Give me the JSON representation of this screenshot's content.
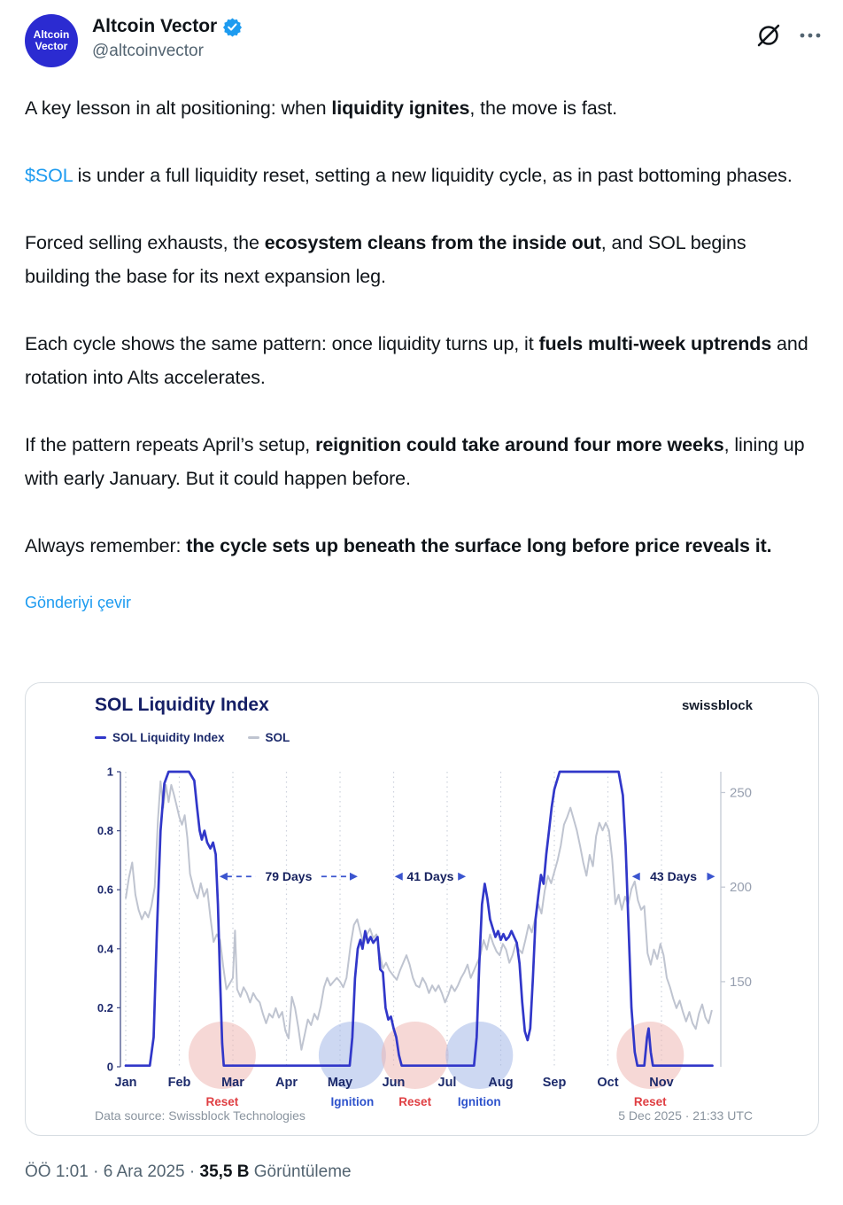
{
  "header": {
    "avatar": {
      "line1": "Altcoin",
      "line2": "Vector",
      "bg": "#2b2bd1"
    },
    "display_name": "Altcoin Vector",
    "handle": "@altcoinvector"
  },
  "tweet": {
    "paragraphs": [
      [
        {
          "t": "A key lesson in alt positioning: when "
        },
        {
          "t": "liquidity ignites",
          "b": true
        },
        {
          "t": ", the move is fast."
        }
      ],
      [
        {
          "t": "$SOL",
          "link": true
        },
        {
          "t": " is under a full liquidity reset, setting a new liquidity cycle, as in past bottoming phases."
        }
      ],
      [
        {
          "t": "Forced selling exhausts, the "
        },
        {
          "t": "ecosystem cleans from the inside out",
          "b": true
        },
        {
          "t": ", and SOL begins building the base for its next expansion leg."
        }
      ],
      [
        {
          "t": "Each cycle shows the same pattern: once liquidity turns up, it "
        },
        {
          "t": "fuels multi-week uptrends",
          "b": true
        },
        {
          "t": " and rotation into Alts accelerates."
        }
      ],
      [
        {
          "t": "If the pattern repeats April’s setup, "
        },
        {
          "t": "reignition could take around four more weeks",
          "b": true
        },
        {
          "t": ", lining up with early January. But it could happen before."
        }
      ],
      [
        {
          "t": "Always remember: "
        },
        {
          "t": "the cycle sets up beneath the surface long before price reveals it.",
          "b": true
        }
      ]
    ],
    "translate_label": "Gönderiyi çevir"
  },
  "footer_meta": {
    "prefix": "ÖÖ 1:01 · 6 Ara 2025 · ",
    "views_count": "35,5 B",
    "views_label": " Görüntüleme"
  },
  "chart_data": {
    "type": "line",
    "title": "SOL Liquidity Index",
    "watermark": "swissblock",
    "legend": [
      {
        "name": "SOL Liquidity Index",
        "color": "#3137c9"
      },
      {
        "name": "SOL",
        "color": "#bfc4d0"
      }
    ],
    "x_months": [
      "Jan",
      "Feb",
      "Mar",
      "Apr",
      "May",
      "Jun",
      "Jul",
      "Aug",
      "Sep",
      "Oct",
      "Nov"
    ],
    "left_axis": {
      "ticks": [
        "1",
        "0.8",
        "0.6",
        "0.4",
        "0.2",
        "0"
      ],
      "range": [
        0,
        1
      ]
    },
    "right_axis": {
      "ticks": [
        250,
        200,
        150
      ],
      "baseline_value": 105,
      "top_value": 261
    },
    "grid": "vertical-dotted-monthly",
    "legend_position": "top-left",
    "series": [
      {
        "name": "SOL Liquidity Index",
        "axis": "left",
        "x": [
          0,
          0.45,
          0.52,
          0.58,
          0.65,
          0.72,
          0.8,
          1.18,
          1.28,
          1.33,
          1.38,
          1.42,
          1.47,
          1.52,
          1.58,
          1.63,
          1.68,
          1.72,
          1.76,
          1.8,
          1.83,
          4.18,
          4.23,
          4.28,
          4.33,
          4.38,
          4.42,
          4.47,
          4.52,
          4.57,
          4.62,
          4.7,
          4.75,
          4.8,
          4.85,
          4.9,
          4.95,
          5,
          5.05,
          5.1,
          5.15,
          6.5,
          6.55,
          6.6,
          6.65,
          6.7,
          6.75,
          6.8,
          6.85,
          6.9,
          6.95,
          7,
          7.05,
          7.1,
          7.15,
          7.2,
          7.25,
          7.3,
          7.35,
          7.4,
          7.45,
          7.5,
          7.55,
          7.6,
          7.65,
          7.7,
          7.75,
          7.8,
          7.85,
          7.9,
          7.95,
          8,
          8.1,
          9.2,
          9.28,
          9.33,
          9.38,
          9.44,
          9.5,
          9.55,
          9.68,
          9.73,
          9.76,
          9.8,
          9.84,
          10.95
        ],
        "y": [
          0.004,
          0.004,
          0.1,
          0.45,
          0.8,
          0.96,
          1,
          1,
          0.97,
          0.88,
          0.8,
          0.77,
          0.8,
          0.76,
          0.74,
          0.76,
          0.72,
          0.55,
          0.3,
          0.08,
          0.004,
          0.004,
          0.1,
          0.3,
          0.4,
          0.43,
          0.4,
          0.46,
          0.42,
          0.44,
          0.42,
          0.44,
          0.33,
          0.32,
          0.2,
          0.16,
          0.17,
          0.13,
          0.1,
          0.04,
          0.004,
          0.004,
          0.1,
          0.35,
          0.55,
          0.62,
          0.57,
          0.5,
          0.47,
          0.44,
          0.46,
          0.43,
          0.45,
          0.43,
          0.44,
          0.46,
          0.44,
          0.42,
          0.35,
          0.22,
          0.12,
          0.09,
          0.13,
          0.3,
          0.5,
          0.58,
          0.65,
          0.62,
          0.72,
          0.8,
          0.88,
          0.94,
          1,
          1,
          0.92,
          0.75,
          0.5,
          0.2,
          0.05,
          0.004,
          0.004,
          0.1,
          0.13,
          0.05,
          0.004,
          0.004
        ]
      },
      {
        "name": "SOL",
        "axis": "right",
        "x": [
          0,
          0.06,
          0.12,
          0.18,
          0.24,
          0.3,
          0.36,
          0.42,
          0.48,
          0.54,
          0.6,
          0.65,
          0.7,
          0.75,
          0.8,
          0.85,
          0.9,
          0.95,
          1,
          1.05,
          1.1,
          1.15,
          1.2,
          1.28,
          1.34,
          1.4,
          1.46,
          1.52,
          1.58,
          1.64,
          1.7,
          1.76,
          1.82,
          1.88,
          1.94,
          2,
          2.04,
          2.08,
          2.14,
          2.2,
          2.26,
          2.32,
          2.38,
          2.44,
          2.5,
          2.56,
          2.62,
          2.68,
          2.74,
          2.8,
          2.86,
          2.92,
          2.98,
          3.04,
          3.1,
          3.16,
          3.22,
          3.28,
          3.34,
          3.4,
          3.46,
          3.52,
          3.58,
          3.64,
          3.7,
          3.76,
          3.82,
          3.88,
          3.94,
          4,
          4.06,
          4.12,
          4.2,
          4.26,
          4.32,
          4.38,
          4.44,
          4.5,
          4.56,
          4.62,
          4.68,
          4.74,
          4.8,
          4.86,
          4.92,
          5,
          5.06,
          5.12,
          5.18,
          5.24,
          5.3,
          5.36,
          5.42,
          5.48,
          5.54,
          5.6,
          5.66,
          5.72,
          5.78,
          5.84,
          5.9,
          5.96,
          6.02,
          6.08,
          6.14,
          6.2,
          6.26,
          6.32,
          6.38,
          6.44,
          6.5,
          6.56,
          6.62,
          6.68,
          6.74,
          6.8,
          6.86,
          6.92,
          6.98,
          7.04,
          7.1,
          7.16,
          7.22,
          7.28,
          7.34,
          7.4,
          7.46,
          7.52,
          7.58,
          7.64,
          7.7,
          7.76,
          7.82,
          7.88,
          7.94,
          8,
          8.06,
          8.12,
          8.18,
          8.24,
          8.3,
          8.36,
          8.42,
          8.48,
          8.54,
          8.6,
          8.66,
          8.72,
          8.78,
          8.84,
          8.9,
          8.96,
          9.02,
          9.08,
          9.14,
          9.2,
          9.26,
          9.32,
          9.38,
          9.44,
          9.5,
          9.56,
          9.62,
          9.68,
          9.74,
          9.8,
          9.86,
          9.92,
          9.98,
          10.04,
          10.1,
          10.16,
          10.22,
          10.28,
          10.34,
          10.4,
          10.46,
          10.52,
          10.58,
          10.64,
          10.7,
          10.76,
          10.82,
          10.88,
          10.94
        ],
        "y": [
          194,
          205,
          213,
          196,
          188,
          183,
          187,
          184,
          190,
          200,
          235,
          256,
          242,
          254,
          245,
          254,
          249,
          243,
          237,
          233,
          238,
          226,
          207,
          198,
          194,
          202,
          195,
          199,
          184,
          171,
          175,
          172,
          158,
          146,
          149,
          152,
          177,
          146,
          142,
          147,
          144,
          139,
          144,
          141,
          139,
          133,
          128,
          133,
          131,
          136,
          131,
          134,
          124,
          120,
          142,
          136,
          126,
          114,
          122,
          130,
          127,
          133,
          130,
          137,
          147,
          152,
          148,
          150,
          152,
          150,
          147,
          152,
          170,
          180,
          183,
          176,
          170,
          175,
          178,
          173,
          175,
          165,
          157,
          160,
          156,
          153,
          151,
          156,
          160,
          164,
          159,
          152,
          148,
          147,
          152,
          149,
          144,
          148,
          145,
          148,
          144,
          139,
          143,
          148,
          145,
          148,
          152,
          155,
          159,
          152,
          156,
          160,
          164,
          172,
          167,
          175,
          170,
          166,
          164,
          170,
          167,
          160,
          164,
          170,
          167,
          165,
          172,
          180,
          176,
          183,
          191,
          186,
          198,
          206,
          202,
          208,
          214,
          222,
          233,
          237,
          242,
          236,
          230,
          222,
          213,
          206,
          217,
          211,
          227,
          234,
          230,
          234,
          230,
          215,
          191,
          196,
          188,
          195,
          191,
          199,
          203,
          193,
          188,
          190,
          165,
          159,
          167,
          162,
          170,
          164,
          152,
          147,
          141,
          136,
          140,
          134,
          129,
          134,
          128,
          125,
          133,
          138,
          131,
          128,
          135
        ]
      }
    ],
    "annotations": [
      {
        "label": "79 Days",
        "from_month": 1.75,
        "to_month": 4.33,
        "y_value": 0.645
      },
      {
        "label": "41 Days",
        "from_month": 5.02,
        "to_month": 6.35,
        "y_value": 0.645
      },
      {
        "label": "43 Days",
        "from_month": 9.45,
        "to_month": 11.0,
        "y_value": 0.645
      }
    ],
    "events": [
      {
        "label": "Reset",
        "type": "reset",
        "month": 1.8
      },
      {
        "label": "Ignition",
        "type": "ignition",
        "month": 4.23
      },
      {
        "label": "Reset",
        "type": "reset",
        "month": 5.4
      },
      {
        "label": "Ignition",
        "type": "ignition",
        "month": 6.6
      },
      {
        "label": "Reset",
        "type": "reset",
        "month": 9.79
      }
    ],
    "footnote": "Data source: Swissblock Technologies",
    "timestamp": "5 Dec 2025 · 21:33 UTC"
  }
}
